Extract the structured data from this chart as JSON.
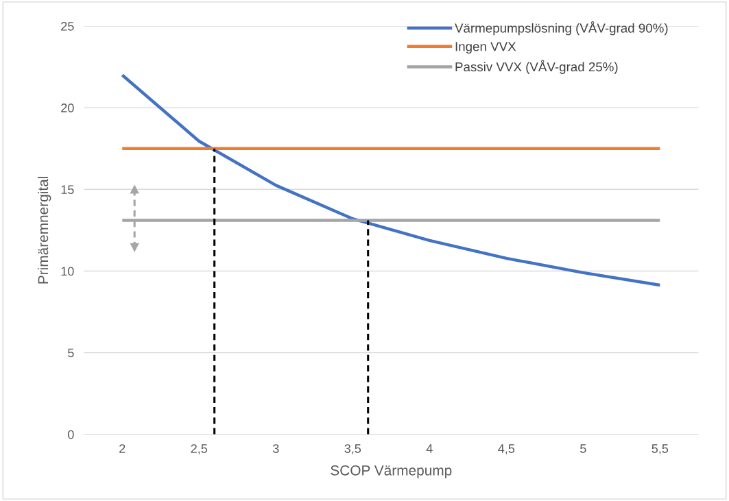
{
  "chart_data": {
    "type": "line",
    "xlabel": "SCOP Värmepump",
    "ylabel": "Primäremnergital",
    "xlim": [
      1.75,
      5.75
    ],
    "xticks": [
      2,
      {
        "value": 2.5,
        "label": "2,5"
      },
      3,
      {
        "value": 3.5,
        "label": "3,5"
      },
      4,
      {
        "value": 4.5,
        "label": "4,5"
      },
      5,
      {
        "value": 5.5,
        "label": "5,5"
      }
    ],
    "ylim": [
      0,
      25
    ],
    "yticks": [
      0,
      5,
      10,
      15,
      20,
      25
    ],
    "grid": "y",
    "legend": "top right",
    "line_style": "solid",
    "marker": "none",
    "series": [
      {
        "name": "Värmepumpslösning (VÅV-grad 90%)",
        "color": "#4472c4",
        "x": [
          2,
          2.5,
          3,
          3.5,
          4,
          4.5,
          5,
          5.5
        ],
        "values": [
          22,
          17.95,
          15.25,
          13.2,
          11.87,
          10.78,
          9.9,
          9.14
        ]
      },
      {
        "name": "Ingen VVX",
        "color": "#ed7d31",
        "x": [
          2,
          5.5
        ],
        "values": [
          17.5,
          17.5
        ]
      },
      {
        "name": "Passiv VVX (VÅV-grad 25%)",
        "color": "#a5a5a5",
        "x": [
          2,
          5.5
        ],
        "values": [
          13.1,
          13.1
        ]
      },
      {
        "color": "#000000",
        "x": [
          2.6,
          2.6
        ],
        "values": [
          0,
          17.5
        ],
        "line_style": "dashed"
      },
      {
        "color": "#000000",
        "x": [
          3.6,
          3.6
        ],
        "values": [
          0,
          13.1
        ],
        "line_style": "dashed"
      },
      {
        "color": "#a5a5a5",
        "x": [
          2.08,
          2.08
        ],
        "values": [
          15,
          11.45
        ],
        "line_style": "dashed",
        "marker": "triangle"
      }
    ]
  }
}
